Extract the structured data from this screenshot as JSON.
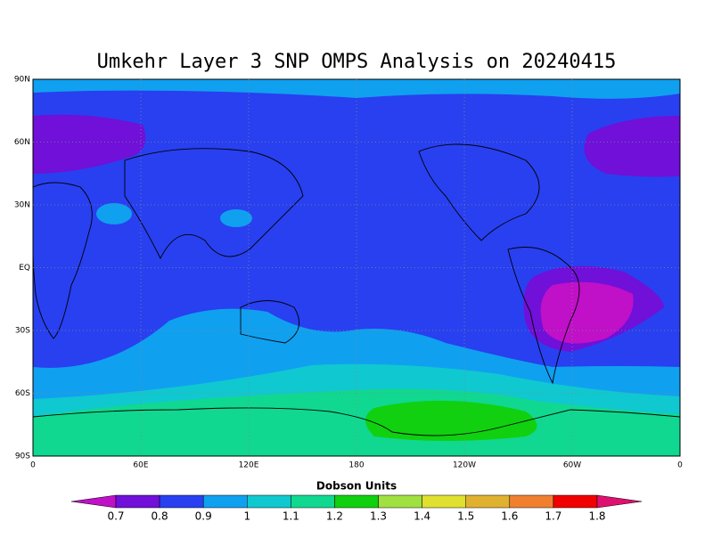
{
  "title": "Umkehr Layer 3 SNP OMPS Analysis on 20240415",
  "map": {
    "lat_labels": [
      "90N",
      "60N",
      "30N",
      "EQ",
      "30S",
      "60S",
      "90S"
    ],
    "lon_labels": [
      "0",
      "60E",
      "120E",
      "180",
      "120W",
      "60W",
      "0"
    ],
    "grid": true
  },
  "colorbar": {
    "label": "Dobson Units",
    "ticks": [
      0.7,
      0.8,
      0.9,
      1,
      1.1,
      1.2,
      1.3,
      1.4,
      1.5,
      1.6,
      1.7,
      1.8
    ],
    "colors": [
      "#c010c8",
      "#7010d8",
      "#2840f0",
      "#10a0f0",
      "#10c8d0",
      "#10d890",
      "#10d010",
      "#a0e040",
      "#e0e030",
      "#e0b030",
      "#f08030",
      "#f00000",
      "#e01070"
    ]
  }
}
